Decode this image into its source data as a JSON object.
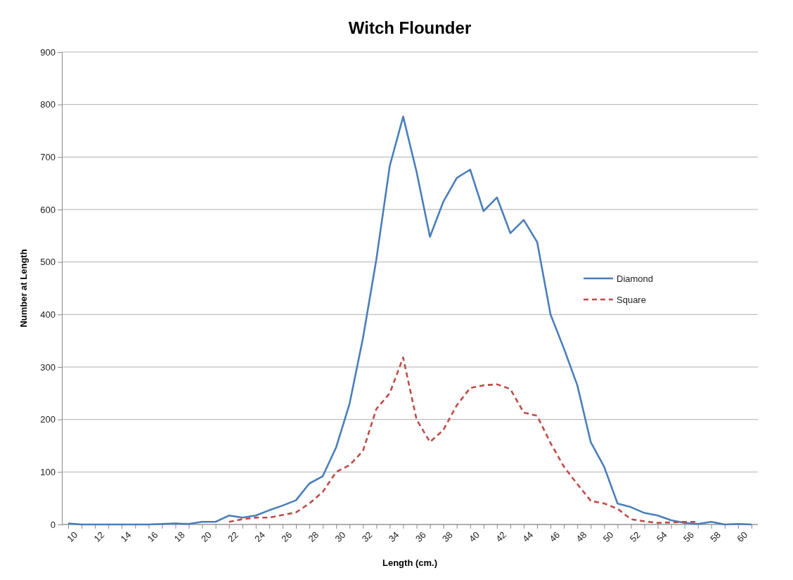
{
  "chart_data": {
    "type": "line",
    "title": "Witch Flounder",
    "xlabel": "Length (cm.)",
    "ylabel": "Number at Length",
    "categories": [
      "10",
      null,
      "12",
      null,
      "14",
      null,
      "16",
      null,
      "18",
      null,
      "20",
      null,
      "22",
      null,
      "24",
      null,
      "26",
      null,
      "28",
      null,
      "30",
      null,
      "32",
      null,
      "34",
      null,
      "36",
      null,
      "38",
      null,
      "40",
      null,
      "42",
      null,
      "44",
      null,
      "46",
      null,
      "48",
      null,
      "50",
      null,
      "52",
      null,
      "54",
      null,
      "56",
      null,
      "58",
      null,
      "60",
      null
    ],
    "series": [
      {
        "name": "Diamond",
        "color": "#4a7ebb",
        "line_style": "solid",
        "values": [
          2,
          0,
          0,
          0,
          0,
          0,
          0,
          1,
          2,
          1,
          5,
          5,
          17,
          13,
          17,
          27,
          36,
          46,
          78,
          92,
          147,
          230,
          355,
          505,
          683,
          777,
          672,
          548,
          615,
          660,
          676,
          597,
          623,
          555,
          580,
          538,
          400,
          335,
          265,
          157,
          110,
          40,
          33,
          22,
          17,
          8,
          3,
          1,
          5,
          0,
          1,
          0
        ]
      },
      {
        "name": "Square",
        "color": "#be4b48",
        "line_style": "dashed",
        "values": [
          null,
          null,
          null,
          null,
          null,
          null,
          null,
          null,
          null,
          null,
          null,
          null,
          5,
          10,
          13,
          13,
          18,
          23,
          40,
          62,
          100,
          113,
          140,
          220,
          250,
          318,
          200,
          157,
          180,
          227,
          260,
          265,
          267,
          258,
          213,
          207,
          155,
          110,
          77,
          45,
          40,
          30,
          10,
          6,
          3,
          4,
          5,
          5,
          null,
          null,
          null,
          null
        ]
      }
    ],
    "ylim": [
      0,
      900
    ],
    "yticks": [
      0,
      100,
      200,
      300,
      400,
      500,
      600,
      700,
      800,
      900
    ],
    "grid": "y",
    "legend": "right",
    "marker": "none"
  }
}
